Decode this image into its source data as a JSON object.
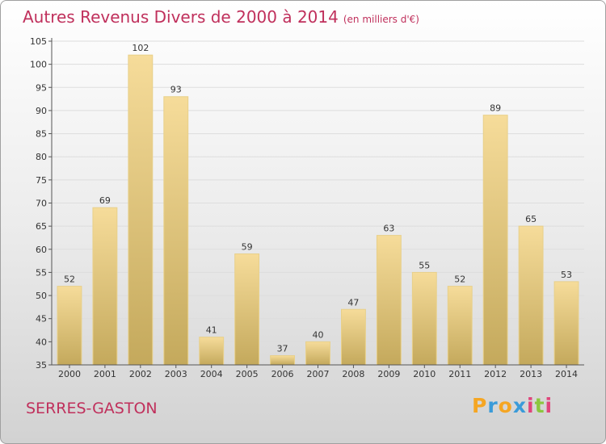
{
  "title": "Autres Revenus Divers de 2000 à 2014",
  "unit": "(en milliers d'€)",
  "commune": "SERRES-GASTON",
  "brand": {
    "letters": [
      "P",
      "r",
      "o",
      "x",
      "i",
      "t",
      "i"
    ],
    "colors": [
      "#f5a623",
      "#3a9bd9",
      "#f5a623",
      "#3a9bd9",
      "#e0457b",
      "#8cc63f",
      "#e0457b"
    ]
  },
  "colors": {
    "title": "#c0305c",
    "bar_top": "#f6dc9a",
    "bar_bottom": "#c4a95c",
    "axis": "#555555",
    "grid": "#dddddd"
  },
  "chart_data": {
    "type": "bar",
    "categories": [
      "2000",
      "2001",
      "2002",
      "2003",
      "2004",
      "2005",
      "2006",
      "2007",
      "2008",
      "2009",
      "2010",
      "2011",
      "2012",
      "2013",
      "2014"
    ],
    "values": [
      52,
      69,
      102,
      93,
      41,
      59,
      37,
      40,
      47,
      63,
      55,
      52,
      89,
      65,
      53
    ],
    "ylim": [
      35,
      105
    ],
    "yticks": [
      35,
      40,
      45,
      50,
      55,
      60,
      65,
      70,
      75,
      80,
      85,
      90,
      95,
      100,
      105
    ],
    "grid": true,
    "title": "Autres Revenus Divers de 2000 à 2014",
    "xlabel": "",
    "ylabel": ""
  }
}
